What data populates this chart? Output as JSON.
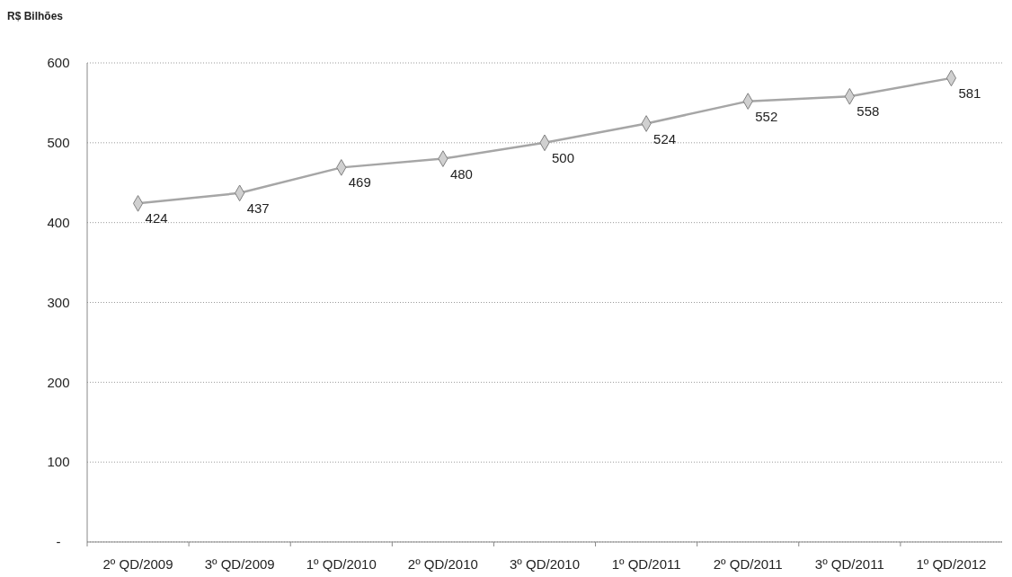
{
  "chart_data": {
    "type": "line",
    "ylabel": "R$ Bilhões",
    "categories": [
      "2º QD/2009",
      "3º QD/2009",
      "1º QD/2010",
      "2º QD/2010",
      "3º QD/2010",
      "1º QD/2011",
      "2º QD/2011",
      "3º QD/2011",
      "1º QD/2012"
    ],
    "series": [
      {
        "color": "#a6a6a6",
        "values": [
          424,
          437,
          469,
          480,
          500,
          524,
          552,
          558,
          581
        ]
      }
    ],
    "ylim": [
      0,
      600
    ],
    "yticks": [
      {
        "value": 0,
        "label": "-"
      },
      100,
      200,
      300,
      400,
      500,
      600
    ],
    "grid": "y",
    "marker": "diamond",
    "line_style": "solid",
    "data_labels": true
  }
}
